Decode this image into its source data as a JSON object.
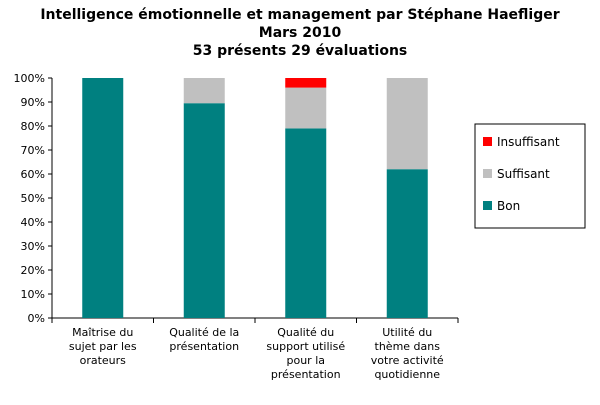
{
  "chart_data": {
    "type": "bar",
    "stacked": true,
    "title": "Intelligence émotionnelle et management par Stéphane Haefliger",
    "subtitle": [
      "Mars 2010",
      "53 présents 29 évaluations"
    ],
    "categories": [
      [
        "Maîtrise du",
        "sujet par les",
        "orateurs"
      ],
      [
        "Qualité de la",
        "présentation"
      ],
      [
        "Qualité du",
        "support utilisé",
        "pour la",
        "présentation"
      ],
      [
        "Utilité du",
        "thème dans",
        "votre activité",
        "quotidienne"
      ]
    ],
    "series": [
      {
        "name": "Bon",
        "color": "#008080",
        "values": [
          100,
          89.5,
          79,
          62
        ]
      },
      {
        "name": "Suffisant",
        "color": "#c0c0c0",
        "values": [
          0,
          10.5,
          17,
          38
        ]
      },
      {
        "name": "Insuffisant",
        "color": "#ff0000",
        "values": [
          0,
          0,
          4,
          0
        ]
      }
    ],
    "legend_order": [
      "Insuffisant",
      "Suffisant",
      "Bon"
    ],
    "ylim": [
      0,
      100
    ],
    "yticks": [
      "0%",
      "10%",
      "20%",
      "30%",
      "40%",
      "50%",
      "60%",
      "70%",
      "80%",
      "90%",
      "100%"
    ],
    "legend_position": "right",
    "grid": false
  }
}
